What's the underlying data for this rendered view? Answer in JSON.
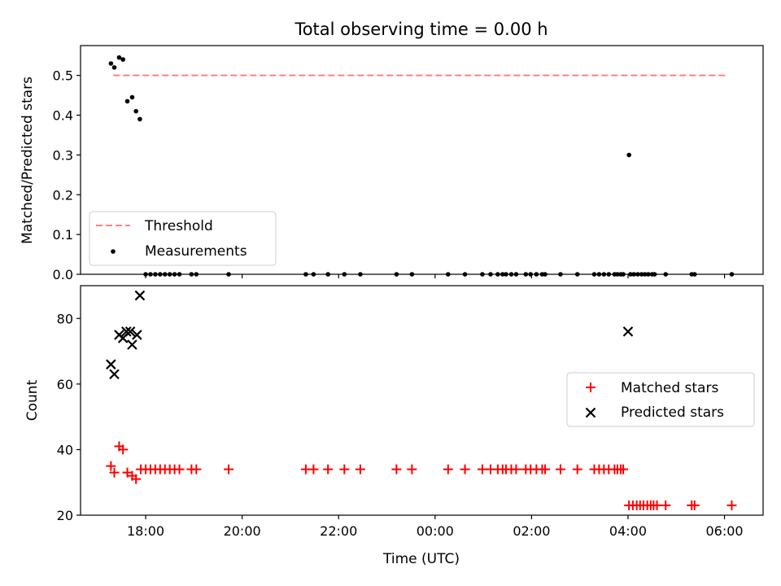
{
  "chart_data": [
    {
      "type": "scatter",
      "title": "Total observing time = 0.00 h",
      "ylabel": "Matched/Predicted stars",
      "xlabel": "",
      "x_unit": "hours since 00:00 UTC (negative = previous day)",
      "xlim": [
        -7.35,
        6.8
      ],
      "ylim": [
        0,
        0.575
      ],
      "yticks": [
        0.0,
        0.1,
        0.2,
        0.3,
        0.4,
        0.5
      ],
      "ytick_labels": [
        "0.0",
        "0.1",
        "0.2",
        "0.3",
        "0.4",
        "0.5"
      ],
      "legend_position": "lower-left",
      "grid": false,
      "threshold": {
        "name": "Threshold",
        "value": 0.5,
        "x_start": -6.67,
        "x_end": 6.07,
        "color": "#ff7f7f"
      },
      "series": [
        {
          "name": "Measurements",
          "color": "#000000",
          "marker": "dot",
          "points": [
            [
              -6.72,
              0.53
            ],
            [
              -6.65,
              0.52
            ],
            [
              -6.55,
              0.545
            ],
            [
              -6.47,
              0.54
            ],
            [
              -6.38,
              0.435
            ],
            [
              -6.28,
              0.445
            ],
            [
              -6.2,
              0.41
            ],
            [
              -6.12,
              0.39
            ],
            [
              -6.0,
              0
            ],
            [
              -5.9,
              0
            ],
            [
              -5.8,
              0
            ],
            [
              -5.7,
              0
            ],
            [
              -5.6,
              0
            ],
            [
              -5.5,
              0
            ],
            [
              -5.4,
              0
            ],
            [
              -5.3,
              0
            ],
            [
              -5.05,
              0
            ],
            [
              -4.95,
              0
            ],
            [
              -4.28,
              0
            ],
            [
              -2.68,
              0
            ],
            [
              -2.52,
              0
            ],
            [
              -2.22,
              0
            ],
            [
              -1.88,
              0
            ],
            [
              -1.55,
              0
            ],
            [
              -0.8,
              0
            ],
            [
              -0.48,
              0
            ],
            [
              0.27,
              0
            ],
            [
              0.62,
              0
            ],
            [
              0.98,
              0
            ],
            [
              1.15,
              0
            ],
            [
              1.3,
              0
            ],
            [
              1.4,
              0
            ],
            [
              1.47,
              0
            ],
            [
              1.58,
              0
            ],
            [
              1.68,
              0
            ],
            [
              1.88,
              0
            ],
            [
              1.98,
              0
            ],
            [
              2.1,
              0
            ],
            [
              2.22,
              0
            ],
            [
              2.28,
              0
            ],
            [
              2.6,
              0
            ],
            [
              2.95,
              0
            ],
            [
              3.3,
              0
            ],
            [
              3.4,
              0
            ],
            [
              3.5,
              0
            ],
            [
              3.6,
              0
            ],
            [
              3.72,
              0
            ],
            [
              3.78,
              0
            ],
            [
              3.85,
              0
            ],
            [
              3.9,
              0
            ],
            [
              4.02,
              0.3
            ],
            [
              4.05,
              0
            ],
            [
              4.12,
              0
            ],
            [
              4.2,
              0
            ],
            [
              4.28,
              0
            ],
            [
              4.35,
              0
            ],
            [
              4.42,
              0
            ],
            [
              4.5,
              0
            ],
            [
              4.55,
              0
            ],
            [
              4.78,
              0
            ],
            [
              5.32,
              0
            ],
            [
              5.38,
              0
            ],
            [
              6.15,
              0
            ]
          ]
        }
      ]
    },
    {
      "type": "scatter",
      "title": "",
      "ylabel": "Count",
      "xlabel": "Time (UTC)",
      "x_unit": "hours since 00:00 UTC (negative = previous day)",
      "xlim": [
        -7.35,
        6.8
      ],
      "ylim": [
        20,
        90
      ],
      "yticks": [
        20,
        40,
        60,
        80
      ],
      "ytick_labels": [
        "20",
        "40",
        "60",
        "80"
      ],
      "xticks": [
        -6,
        -4,
        -2,
        0,
        2,
        4,
        6
      ],
      "xtick_labels": [
        "18:00",
        "20:00",
        "22:00",
        "00:00",
        "02:00",
        "04:00",
        "06:00"
      ],
      "legend_position": "center-right",
      "grid": false,
      "series": [
        {
          "name": "Matched stars",
          "color": "#ff0000",
          "marker": "plus",
          "points": [
            [
              -6.72,
              35
            ],
            [
              -6.65,
              33
            ],
            [
              -6.55,
              41
            ],
            [
              -6.47,
              40
            ],
            [
              -6.38,
              33
            ],
            [
              -6.28,
              32
            ],
            [
              -6.2,
              31
            ],
            [
              -6.1,
              34
            ],
            [
              -6.0,
              34
            ],
            [
              -5.9,
              34
            ],
            [
              -5.8,
              34
            ],
            [
              -5.7,
              34
            ],
            [
              -5.6,
              34
            ],
            [
              -5.5,
              34
            ],
            [
              -5.4,
              34
            ],
            [
              -5.3,
              34
            ],
            [
              -5.05,
              34
            ],
            [
              -4.95,
              34
            ],
            [
              -4.28,
              34
            ],
            [
              -2.68,
              34
            ],
            [
              -2.52,
              34
            ],
            [
              -2.22,
              34
            ],
            [
              -1.88,
              34
            ],
            [
              -1.55,
              34
            ],
            [
              -0.8,
              34
            ],
            [
              -0.48,
              34
            ],
            [
              0.27,
              34
            ],
            [
              0.62,
              34
            ],
            [
              0.98,
              34
            ],
            [
              1.15,
              34
            ],
            [
              1.3,
              34
            ],
            [
              1.4,
              34
            ],
            [
              1.47,
              34
            ],
            [
              1.58,
              34
            ],
            [
              1.68,
              34
            ],
            [
              1.88,
              34
            ],
            [
              1.98,
              34
            ],
            [
              2.1,
              34
            ],
            [
              2.22,
              34
            ],
            [
              2.28,
              34
            ],
            [
              2.6,
              34
            ],
            [
              2.95,
              34
            ],
            [
              3.3,
              34
            ],
            [
              3.4,
              34
            ],
            [
              3.5,
              34
            ],
            [
              3.6,
              34
            ],
            [
              3.72,
              34
            ],
            [
              3.78,
              34
            ],
            [
              3.85,
              34
            ],
            [
              3.9,
              34
            ],
            [
              4.02,
              23
            ],
            [
              4.1,
              23
            ],
            [
              4.18,
              23
            ],
            [
              4.25,
              23
            ],
            [
              4.32,
              23
            ],
            [
              4.4,
              23
            ],
            [
              4.47,
              23
            ],
            [
              4.53,
              23
            ],
            [
              4.6,
              23
            ],
            [
              4.78,
              23
            ],
            [
              5.32,
              23
            ],
            [
              5.38,
              23
            ],
            [
              6.15,
              23
            ]
          ]
        },
        {
          "name": "Predicted stars",
          "color": "#000000",
          "marker": "x",
          "points": [
            [
              -6.72,
              66
            ],
            [
              -6.65,
              63
            ],
            [
              -6.55,
              75
            ],
            [
              -6.47,
              74
            ],
            [
              -6.4,
              76
            ],
            [
              -6.32,
              76
            ],
            [
              -6.28,
              72
            ],
            [
              -6.18,
              75
            ],
            [
              -6.12,
              87
            ],
            [
              4.0,
              76
            ]
          ]
        }
      ]
    }
  ]
}
